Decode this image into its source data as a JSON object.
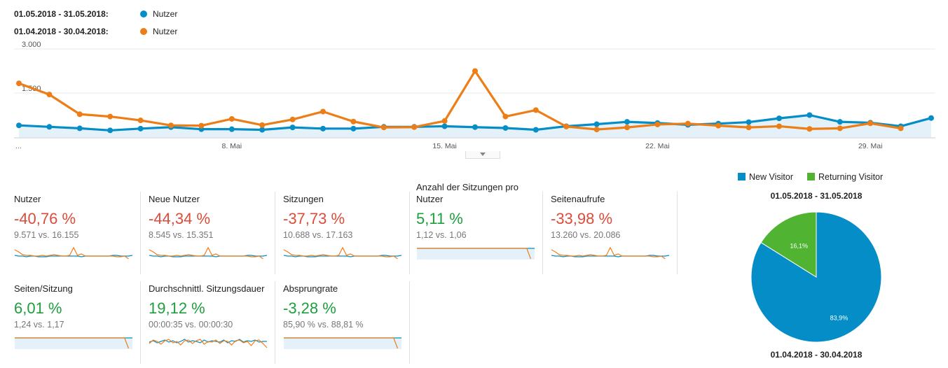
{
  "legend": [
    {
      "range": "01.05.2018 - 31.05.2018:",
      "metric": "Nutzer",
      "color": "#058dc7"
    },
    {
      "range": "01.04.2018 - 30.04.2018:",
      "metric": "Nutzer",
      "color": "#ed7e17"
    }
  ],
  "chart_data": {
    "type": "line",
    "y_ticks": [
      "3.000",
      "1.500"
    ],
    "ylim": [
      0,
      3000
    ],
    "x_tick_labels": [
      {
        "label": "...",
        "index": 0
      },
      {
        "label": "8. Mai",
        "index": 7
      },
      {
        "label": "15. Mai",
        "index": 14
      },
      {
        "label": "22. Mai",
        "index": 21
      },
      {
        "label": "29. Mai",
        "index": 28
      }
    ],
    "grid": true,
    "series": [
      {
        "name": "Nutzer (01.05.2018 - 31.05.2018)",
        "color": "#058dc7",
        "fill": true,
        "values": [
          400,
          350,
          300,
          230,
          290,
          340,
          270,
          270,
          250,
          330,
          290,
          290,
          350,
          350,
          370,
          340,
          310,
          250,
          370,
          440,
          520,
          480,
          420,
          460,
          510,
          640,
          750,
          520,
          490,
          370,
          650
        ]
      },
      {
        "name": "Nutzer (01.04.2018 - 30.04.2018)",
        "color": "#ed7e17",
        "fill": false,
        "values": [
          1830,
          1450,
          780,
          700,
          570,
          400,
          390,
          620,
          410,
          600,
          870,
          530,
          330,
          340,
          550,
          2250,
          700,
          920,
          360,
          260,
          330,
          430,
          460,
          390,
          330,
          370,
          280,
          300,
          470,
          300
        ]
      }
    ]
  },
  "metrics": [
    {
      "title": "Nutzer",
      "percent": "-40,76 %",
      "trend": "neg",
      "compare": "9.571 vs. 16.155",
      "spark": "low"
    },
    {
      "title": "Neue Nutzer",
      "percent": "-44,34 %",
      "trend": "neg",
      "compare": "8.545 vs. 15.351",
      "spark": "low"
    },
    {
      "title": "Sitzungen",
      "percent": "-37,73 %",
      "trend": "neg",
      "compare": "10.688 vs. 17.163",
      "spark": "low"
    },
    {
      "title": "Anzahl der Sitzungen pro Nutzer",
      "percent": "5,11 %",
      "trend": "pos",
      "compare": "1,12 vs. 1,06",
      "spark": "flat"
    },
    {
      "title": "Seitenaufrufe",
      "percent": "-33,98 %",
      "trend": "neg",
      "compare": "13.260 vs. 20.086",
      "spark": "low"
    },
    {
      "title": "Seiten/Sitzung",
      "percent": "6,01 %",
      "trend": "pos",
      "compare": "1,24 vs. 1,17",
      "spark": "flat"
    },
    {
      "title": "Durchschnittl. Sitzungsdauer",
      "percent": "19,12 %",
      "trend": "pos",
      "compare": "00:00:35 vs. 00:00:30",
      "spark": "jagged"
    },
    {
      "title": "Absprungrate",
      "percent": "-3,28 %",
      "trend": "pos",
      "compare": "85,90 % vs. 88,81 %",
      "spark": "flat"
    }
  ],
  "pie": {
    "legend": [
      {
        "label": "New Visitor",
        "color": "#058dc7"
      },
      {
        "label": "Returning Visitor",
        "color": "#50b432"
      }
    ],
    "title_top": "01.05.2018 - 31.05.2018",
    "title_bottom": "01.04.2018 - 30.04.2018",
    "slices": [
      {
        "label": "New Visitor",
        "value": 83.9,
        "text": "83,9%",
        "color": "#058dc7"
      },
      {
        "label": "Returning Visitor",
        "value": 16.1,
        "text": "16,1%",
        "color": "#50b432"
      }
    ]
  }
}
